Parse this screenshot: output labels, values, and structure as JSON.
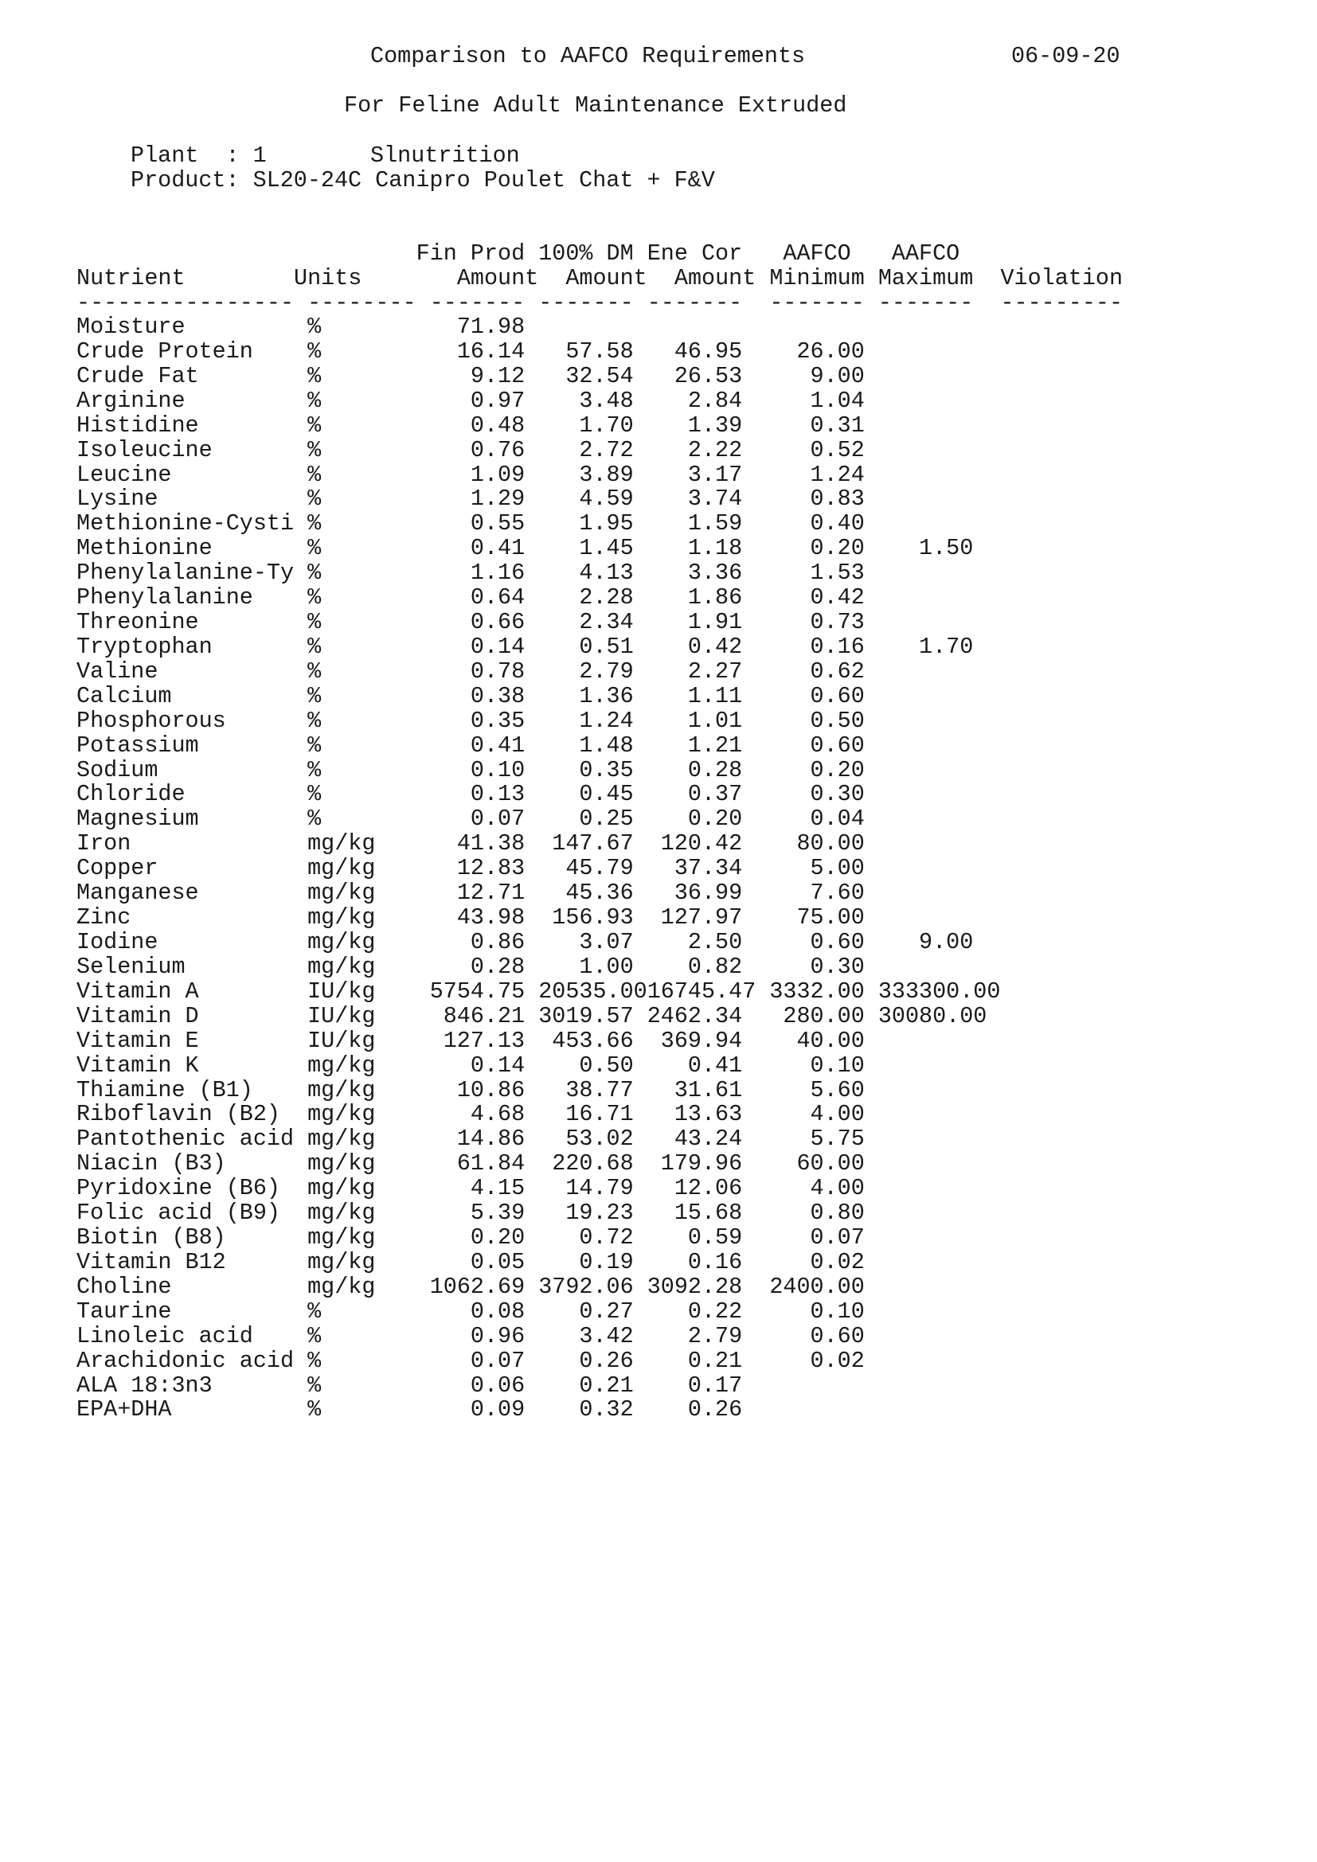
{
  "header": {
    "title": "Comparison to AAFCO Requirements",
    "date": "06-09-20",
    "subtitle": "For Feline Adult Maintenance Extruded",
    "plant_label": "Plant  : 1",
    "plant_name": "Slnutrition",
    "product": "Product: SL20-24C Canipro Poulet Chat + F&V"
  },
  "table": {
    "header_line1": "Fin Prod 100% DM Ene Cor   AAFCO   AAFCO",
    "header_line2": "Nutrient        Units       Amount  Amount  Amount Minimum Maximum  Violation",
    "separator": "---------------- -------- ------- ------- -------  ------- -------  ---------",
    "rows": [
      [
        "Moisture",
        "%",
        "71.98",
        "",
        "",
        "",
        ""
      ],
      [
        "Crude Protein",
        "%",
        "16.14",
        "57.58",
        "46.95",
        "26.00",
        ""
      ],
      [
        "Crude Fat",
        "%",
        "9.12",
        "32.54",
        "26.53",
        "9.00",
        ""
      ],
      [
        "Arginine",
        "%",
        "0.97",
        "3.48",
        "2.84",
        "1.04",
        ""
      ],
      [
        "Histidine",
        "%",
        "0.48",
        "1.70",
        "1.39",
        "0.31",
        ""
      ],
      [
        "Isoleucine",
        "%",
        "0.76",
        "2.72",
        "2.22",
        "0.52",
        ""
      ],
      [
        "Leucine",
        "%",
        "1.09",
        "3.89",
        "3.17",
        "1.24",
        ""
      ],
      [
        "Lysine",
        "%",
        "1.29",
        "4.59",
        "3.74",
        "0.83",
        ""
      ],
      [
        "Methionine-Cysti",
        "%",
        "0.55",
        "1.95",
        "1.59",
        "0.40",
        ""
      ],
      [
        "Methionine",
        "%",
        "0.41",
        "1.45",
        "1.18",
        "0.20",
        "1.50"
      ],
      [
        "Phenylalanine-Ty",
        "%",
        "1.16",
        "4.13",
        "3.36",
        "1.53",
        ""
      ],
      [
        "Phenylalanine",
        "%",
        "0.64",
        "2.28",
        "1.86",
        "0.42",
        ""
      ],
      [
        "Threonine",
        "%",
        "0.66",
        "2.34",
        "1.91",
        "0.73",
        ""
      ],
      [
        "Tryptophan",
        "%",
        "0.14",
        "0.51",
        "0.42",
        "0.16",
        "1.70"
      ],
      [
        "Valine",
        "%",
        "0.78",
        "2.79",
        "2.27",
        "0.62",
        ""
      ],
      [
        "Calcium",
        "%",
        "0.38",
        "1.36",
        "1.11",
        "0.60",
        ""
      ],
      [
        "Phosphorous",
        "%",
        "0.35",
        "1.24",
        "1.01",
        "0.50",
        ""
      ],
      [
        "Potassium",
        "%",
        "0.41",
        "1.48",
        "1.21",
        "0.60",
        ""
      ],
      [
        "Sodium",
        "%",
        "0.10",
        "0.35",
        "0.28",
        "0.20",
        ""
      ],
      [
        "Chloride",
        "%",
        "0.13",
        "0.45",
        "0.37",
        "0.30",
        ""
      ],
      [
        "Magnesium",
        "%",
        "0.07",
        "0.25",
        "0.20",
        "0.04",
        ""
      ],
      [
        "Iron",
        "mg/kg",
        "41.38",
        "147.67",
        "120.42",
        "80.00",
        ""
      ],
      [
        "Copper",
        "mg/kg",
        "12.83",
        "45.79",
        "37.34",
        "5.00",
        ""
      ],
      [
        "Manganese",
        "mg/kg",
        "12.71",
        "45.36",
        "36.99",
        "7.60",
        ""
      ],
      [
        "Zinc",
        "mg/kg",
        "43.98",
        "156.93",
        "127.97",
        "75.00",
        ""
      ],
      [
        "Iodine",
        "mg/kg",
        "0.86",
        "3.07",
        "2.50",
        "0.60",
        "9.00"
      ],
      [
        "Selenium",
        "mg/kg",
        "0.28",
        "1.00",
        "0.82",
        "0.30",
        ""
      ],
      [
        "Vitamin A",
        "IU/kg",
        "5754.75",
        "20535.00",
        "16745.47",
        "3332.00",
        "333300.00"
      ],
      [
        "Vitamin D",
        "IU/kg",
        "846.21",
        "3019.57",
        "2462.34",
        "280.00",
        "30080.00"
      ],
      [
        "Vitamin E",
        "IU/kg",
        "127.13",
        "453.66",
        "369.94",
        "40.00",
        ""
      ],
      [
        "Vitamin K",
        "mg/kg",
        "0.14",
        "0.50",
        "0.41",
        "0.10",
        ""
      ],
      [
        "Thiamine (B1)",
        "mg/kg",
        "10.86",
        "38.77",
        "31.61",
        "5.60",
        ""
      ],
      [
        "Riboflavin (B2)",
        "mg/kg",
        "4.68",
        "16.71",
        "13.63",
        "4.00",
        ""
      ],
      [
        "Pantothenic acid",
        "mg/kg",
        "14.86",
        "53.02",
        "43.24",
        "5.75",
        ""
      ],
      [
        "Niacin (B3)",
        "mg/kg",
        "61.84",
        "220.68",
        "179.96",
        "60.00",
        ""
      ],
      [
        "Pyridoxine (B6)",
        "mg/kg",
        "4.15",
        "14.79",
        "12.06",
        "4.00",
        ""
      ],
      [
        "Folic acid (B9)",
        "mg/kg",
        "5.39",
        "19.23",
        "15.68",
        "0.80",
        ""
      ],
      [
        "Biotin (B8)",
        "mg/kg",
        "0.20",
        "0.72",
        "0.59",
        "0.07",
        ""
      ],
      [
        "Vitamin B12",
        "mg/kg",
        "0.05",
        "0.19",
        "0.16",
        "0.02",
        ""
      ],
      [
        "Choline",
        "mg/kg",
        "1062.69",
        "3792.06",
        "3092.28",
        "2400.00",
        ""
      ],
      [
        "Taurine",
        "%",
        "0.08",
        "0.27",
        "0.22",
        "0.10",
        ""
      ],
      [
        "Linoleic acid",
        "%",
        "0.96",
        "3.42",
        "2.79",
        "0.60",
        ""
      ],
      [
        "Arachidonic acid",
        "%",
        "0.07",
        "0.26",
        "0.21",
        "0.02",
        ""
      ],
      [
        "ALA 18:3n3",
        "%",
        "0.06",
        "0.21",
        "0.17",
        "",
        ""
      ],
      [
        "EPA+DHA",
        "%",
        "0.09",
        "0.32",
        "0.26",
        "",
        ""
      ]
    ]
  }
}
